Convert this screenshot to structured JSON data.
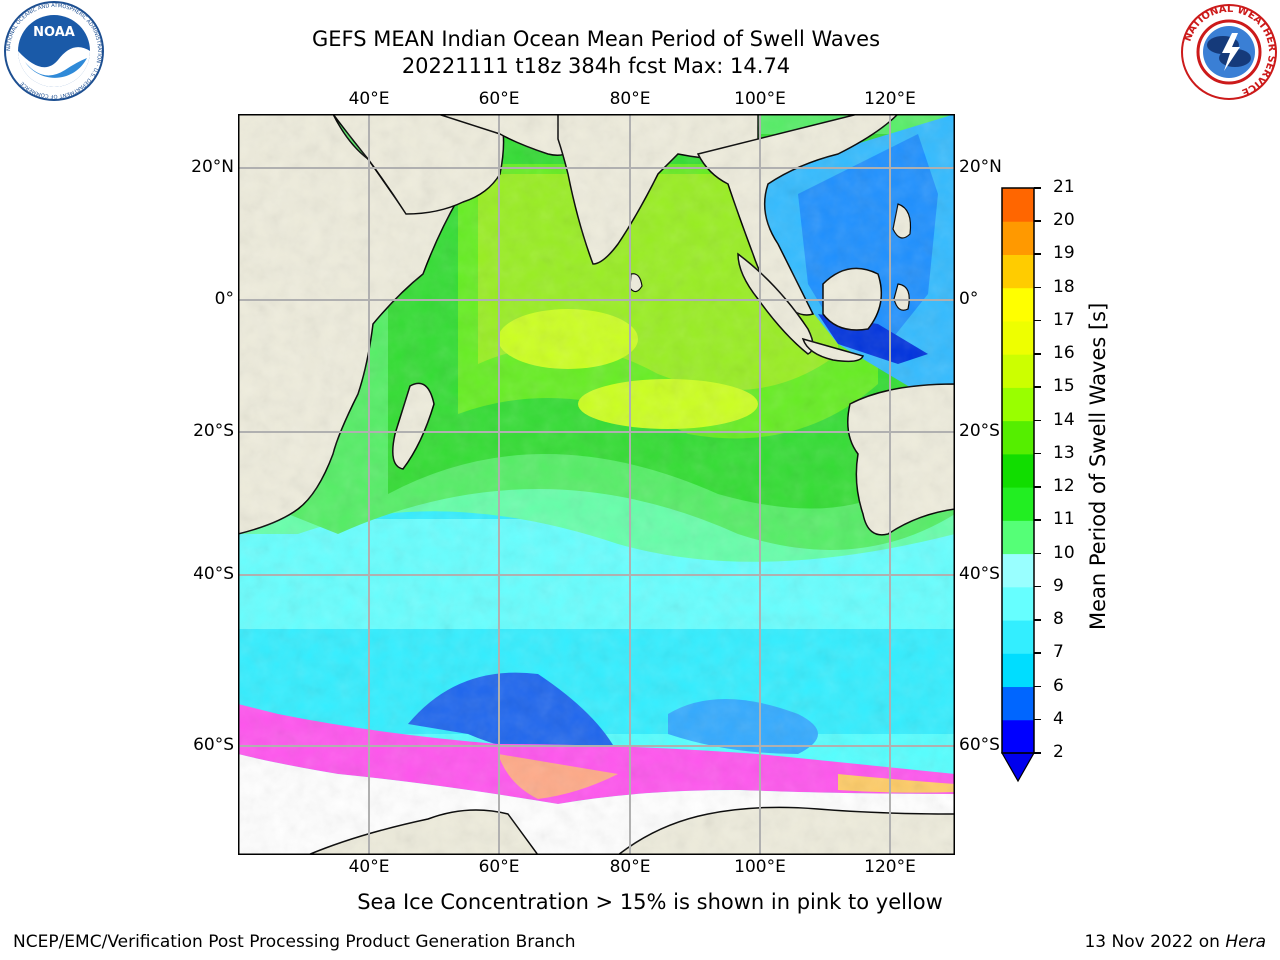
{
  "header": {
    "title_line1": "GEFS MEAN Indian Ocean Mean Period of Swell Waves",
    "title_line2": "20221111 t18z 384h fcst   Max: 14.74"
  },
  "logos": {
    "left": {
      "name": "NOAA",
      "ring_text": "NATIONAL OCEANIC AND ATMOSPHERIC ADMINISTRATION · U.S. DEPARTMENT OF COMMERCE"
    },
    "right": {
      "name": "NATIONAL WEATHER SERVICE"
    }
  },
  "map": {
    "lon_ticks": [
      "40°E",
      "60°E",
      "80°E",
      "100°E",
      "120°E"
    ],
    "lat_ticks": [
      "20°N",
      "0°",
      "20°S",
      "40°S",
      "60°S"
    ],
    "colors": {
      "land": "#eeecdc",
      "sea_ice": "#ff55ee",
      "grid": "#b0b0b0"
    }
  },
  "colorbar": {
    "label": "Mean Period of Swell Waves [s]",
    "ticks": [
      "2",
      "4",
      "6",
      "7",
      "8",
      "9",
      "10",
      "11",
      "12",
      "13",
      "14",
      "15",
      "16",
      "17",
      "18",
      "19",
      "20",
      "21"
    ],
    "colors": [
      "#0000ff",
      "#0066ff",
      "#00ddff",
      "#33eeff",
      "#66ffff",
      "#99ffff",
      "#55ff77",
      "#22ee22",
      "#11dd00",
      "#55ee00",
      "#99ff00",
      "#ccff00",
      "#eeff00",
      "#ffff00",
      "#ffcc00",
      "#ff9900",
      "#ff6600",
      "#ff3300",
      "#ff0000"
    ],
    "extend_color": "#0000ee"
  },
  "footer": {
    "note": "Sea Ice Concentration > 15% is shown in pink to yellow",
    "left": "NCEP/EMC/Verification Post Processing Product Generation Branch",
    "date": "13 Nov 2022 on",
    "machine": "Hera"
  }
}
